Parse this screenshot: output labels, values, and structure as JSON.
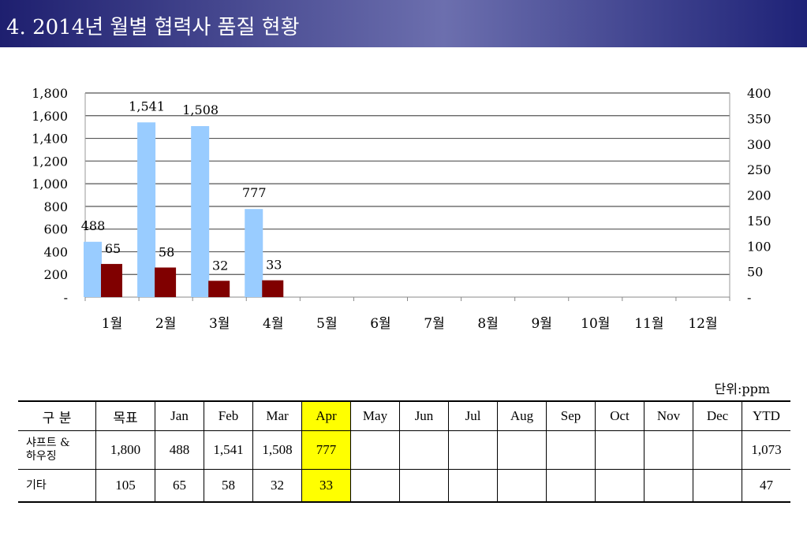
{
  "page_title": "4. 2014년 월별 협력사 품질 현황",
  "unit_label": "단위:ppm",
  "colors": {
    "title_bar": "#1e1f6f",
    "series1": "#99ccff",
    "series2": "#800000",
    "highlight": "#ffff00"
  },
  "chart_data": {
    "type": "bar",
    "categories": [
      "1월",
      "2월",
      "3월",
      "4월",
      "5월",
      "6월",
      "7월",
      "8월",
      "9월",
      "10월",
      "11월",
      "12월"
    ],
    "series": [
      {
        "name": "샤프트 & 하우징",
        "axis": "left",
        "values": [
          488,
          1541,
          1508,
          777,
          null,
          null,
          null,
          null,
          null,
          null,
          null,
          null
        ],
        "labels": [
          "488",
          "1,541",
          "1,508",
          "777"
        ]
      },
      {
        "name": "기타",
        "axis": "right",
        "values": [
          65,
          58,
          32,
          33,
          null,
          null,
          null,
          null,
          null,
          null,
          null,
          null
        ],
        "labels": [
          "65",
          "58",
          "32",
          "33"
        ]
      }
    ],
    "ylim": [
      0,
      1800
    ],
    "y2lim": [
      0,
      400
    ],
    "yticks": [
      "-",
      "200",
      "400",
      "600",
      "800",
      "1,000",
      "1,200",
      "1,400",
      "1,600",
      "1,800"
    ],
    "y2ticks": [
      "-",
      "50",
      "100",
      "150",
      "200",
      "250",
      "300",
      "350",
      "400"
    ],
    "grid": true
  },
  "table": {
    "headers": [
      "구  분",
      "목표",
      "Jan",
      "Feb",
      "Mar",
      "Apr",
      "May",
      "Jun",
      "Jul",
      "Aug",
      "Sep",
      "Oct",
      "Nov",
      "Dec",
      "YTD"
    ],
    "rows": [
      {
        "label_line1": "샤프트 &",
        "label_line2": "하우징",
        "cells": [
          "1,800",
          "488",
          "1,541",
          "1,508",
          "777",
          "",
          "",
          "",
          "",
          "",
          "",
          "",
          "",
          "1,073"
        ]
      },
      {
        "label_line1": "기타",
        "label_line2": "",
        "cells": [
          "105",
          "65",
          "58",
          "32",
          "33",
          "",
          "",
          "",
          "",
          "",
          "",
          "",
          "",
          "47"
        ]
      }
    ]
  }
}
